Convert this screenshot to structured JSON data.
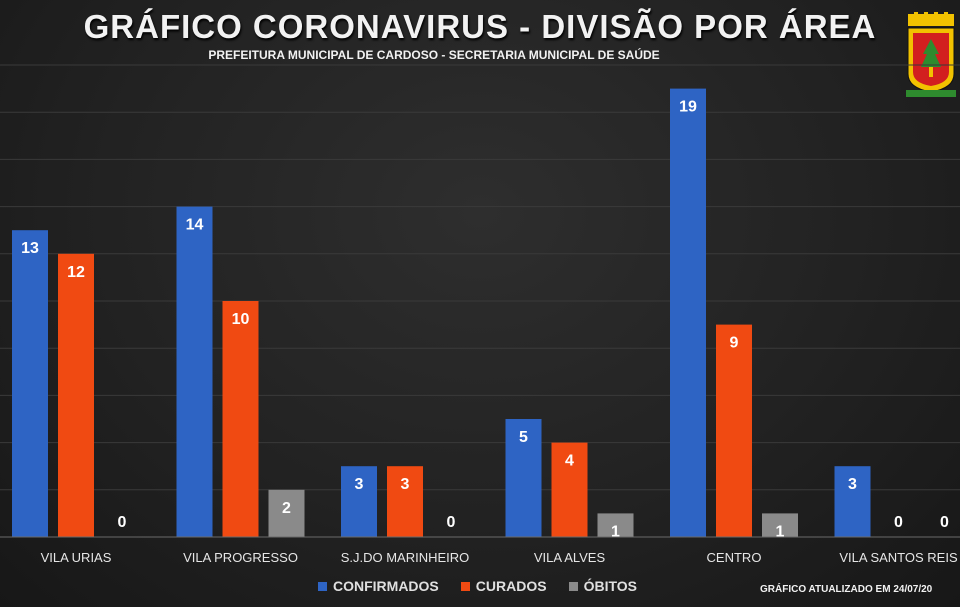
{
  "header": {
    "title": "GRÁFICO CORONAVIRUS - DIVISÃO POR ÁREA",
    "subtitle": "PREFEITURA MUNICIPAL DE CARDOSO - SECRETARIA MUNICIPAL DE SAÚDE"
  },
  "footer": {
    "updated_note": "GRÁFICO ATUALIZADO EM 24/07/20"
  },
  "chart_data": {
    "type": "bar",
    "title": "GRÁFICO CORONAVIRUS - DIVISÃO POR ÁREA",
    "subtitle": "PREFEITURA MUNICIPAL DE CARDOSO - SECRETARIA MUNICIPAL DE SAÚDE",
    "xlabel": "",
    "ylabel": "",
    "ylim": [
      0,
      20
    ],
    "grid": true,
    "legend": "bottom",
    "categories": [
      "VILA URIAS",
      "VILA PROGRESSO",
      "S.J.DO MARINHEIRO",
      "VILA ALVES",
      "CENTRO",
      "VILA SANTOS REIS"
    ],
    "series": [
      {
        "name": "CONFIRMADOS",
        "color": "#2e64c4",
        "values": [
          13,
          14,
          3,
          5,
          19,
          3
        ]
      },
      {
        "name": "CURADOS",
        "color": "#f04a12",
        "values": [
          12,
          10,
          3,
          4,
          9,
          0
        ]
      },
      {
        "name": "ÓBITOS",
        "color": "#8a8a8a",
        "values": [
          0,
          2,
          0,
          1,
          1,
          0
        ]
      }
    ]
  },
  "crest": {
    "icon": "city-crest-icon",
    "colors": [
      "#f2c200",
      "#d21f1f",
      "#2e8b2e"
    ]
  }
}
